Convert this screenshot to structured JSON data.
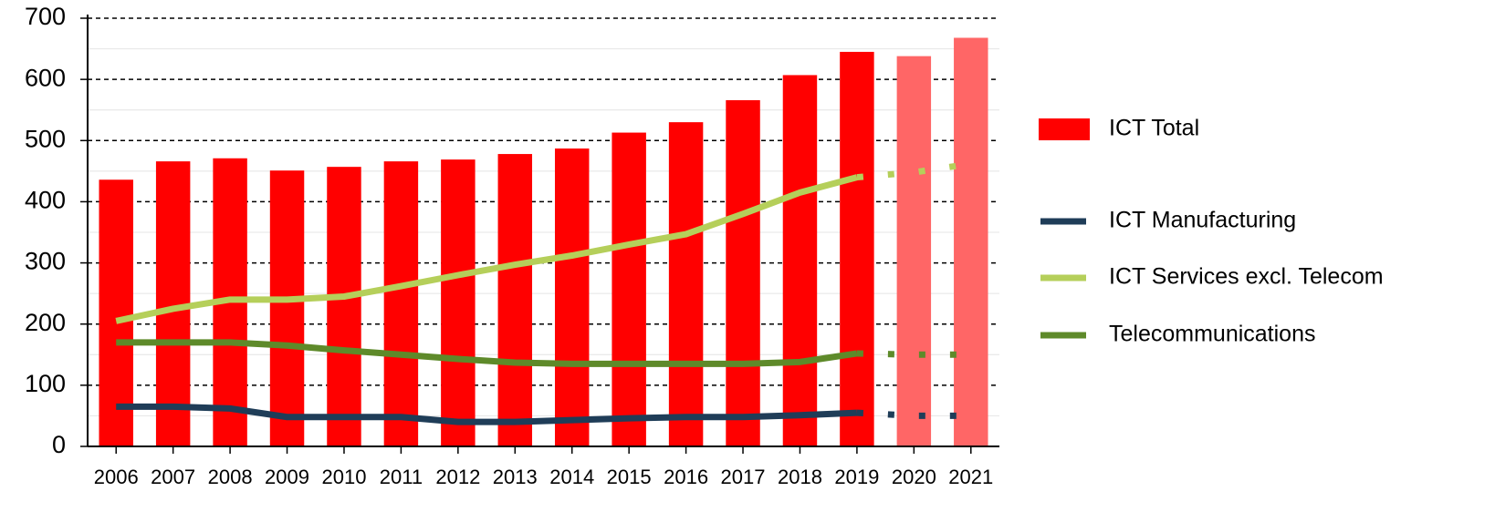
{
  "chart_data": {
    "type": "bar",
    "categories": [
      "2006",
      "2007",
      "2008",
      "2009",
      "2010",
      "2011",
      "2012",
      "2013",
      "2014",
      "2015",
      "2016",
      "2017",
      "2018",
      "2019",
      "2020",
      "2021"
    ],
    "forecast": [
      "2020",
      "2021"
    ],
    "forecast_color": "#ff6666",
    "series": [
      {
        "name": "ICT Total",
        "type": "bar",
        "color": "#ff0000",
        "values": [
          436,
          466,
          471,
          451,
          457,
          466,
          469,
          478,
          487,
          513,
          530,
          566,
          607,
          645,
          638,
          668
        ]
      },
      {
        "name": "ICT Manufacturing",
        "type": "line",
        "color": "#1f3d58",
        "values": [
          65,
          65,
          62,
          48,
          48,
          48,
          40,
          40,
          43,
          46,
          48,
          48,
          51,
          55,
          50,
          50
        ]
      },
      {
        "name": "ICT Services excl. Telecom",
        "type": "line",
        "color": "#b5cf5a",
        "values": [
          205,
          225,
          240,
          240,
          245,
          262,
          280,
          297,
          312,
          330,
          347,
          380,
          415,
          440,
          448,
          462
        ]
      },
      {
        "name": "Telecommunications",
        "type": "line",
        "color": "#5e8a2a",
        "values": [
          170,
          170,
          170,
          165,
          157,
          150,
          143,
          137,
          135,
          135,
          135,
          135,
          138,
          152,
          150,
          150
        ]
      }
    ],
    "ylim": [
      0,
      700
    ],
    "yticks": [
      0,
      100,
      200,
      300,
      400,
      500,
      600,
      700
    ],
    "grid": true,
    "minor_grid": true,
    "legend": "right"
  }
}
